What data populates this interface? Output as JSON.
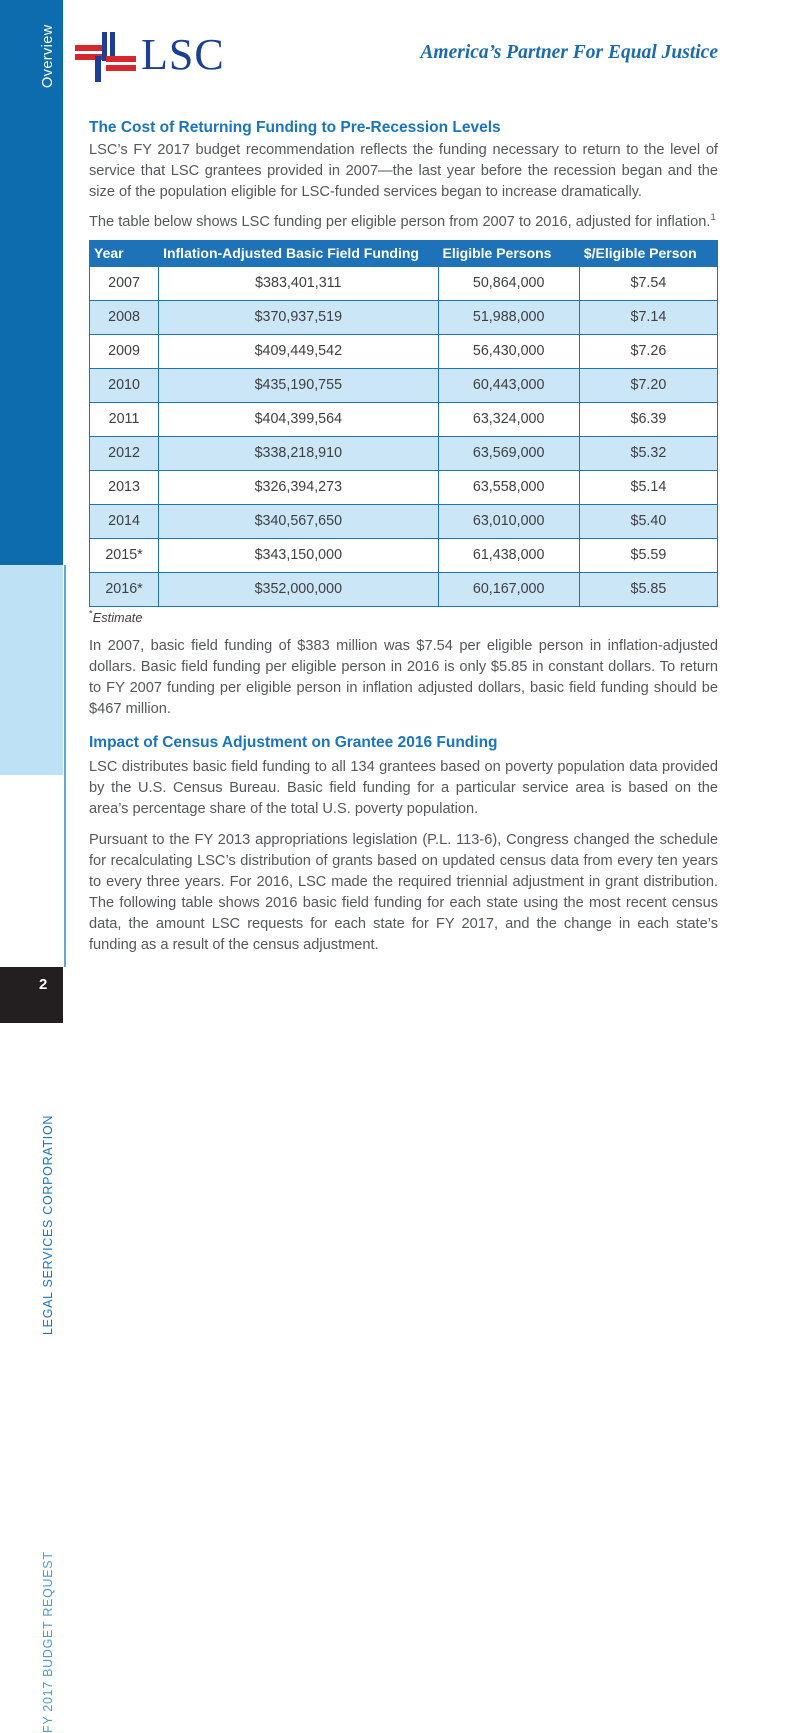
{
  "sidebar": {
    "section_label": "Overview",
    "org_label": "LEGAL SERVICES CORPORATION",
    "doc_label": "FY 2017 BUDGET REQUEST",
    "page_number": "2"
  },
  "header": {
    "logo_text": "LSC",
    "tagline": "America’s Partner For Equal Justice"
  },
  "content": {
    "heading1": "The Cost of Returning Funding to Pre-Recession Levels",
    "para1": "LSC’s FY 2017 budget recommendation reflects the funding necessary to return to the level of service that LSC grantees provided in 2007—the last year before the recession began and the size of the population eligible for LSC-funded services began to increase dramatically.",
    "para2": "The table below shows LSC funding per eligible person from 2007 to 2016, adjusted for inflation.",
    "footnote_ref": "1",
    "table_footnote_marker": "*",
    "table_footnote": "Estimate",
    "para3": "In 2007, basic field funding of $383 million was $7.54 per eligible person in inflation-adjusted dollars. Basic field funding per eligible person in 2016 is only $5.85 in constant dollars. To return to FY 2007 funding per eligible person in inflation adjusted dollars, basic field funding should be $467 million.",
    "heading2": "Impact of Census Adjustment on Grantee 2016 Funding",
    "para4": "LSC distributes basic field funding to all 134 grantees based on poverty population data provided by the U.S. Census Bureau. Basic field funding for a particular service area is based on the area’s percentage share of the total U.S. poverty population.",
    "para5": "Pursuant to the FY 2013 appropriations legislation (P.L. 113-6), Congress changed the schedule for recalculating LSC’s distribution of grants based on updated census data from every ten years to every three years. For 2016, LSC made the required triennial adjustment in grant distribution. The following table shows 2016 basic field funding for each state using the most recent census data, the amount LSC requests for each state for FY 2017, and the change in each state’s funding as a result of the census adjustment."
  },
  "table": {
    "columns": [
      "Year",
      "Inflation-Adjusted Basic Field Funding",
      "Eligible Persons",
      "$/Eligible Person"
    ],
    "rows": [
      [
        "2007",
        "$383,401,311",
        "50,864,000",
        "$7.54"
      ],
      [
        "2008",
        "$370,937,519",
        "51,988,000",
        "$7.14"
      ],
      [
        "2009",
        "$409,449,542",
        "56,430,000",
        "$7.26"
      ],
      [
        "2010",
        "$435,190,755",
        "60,443,000",
        "$7.20"
      ],
      [
        "2011",
        "$404,399,564",
        "63,324,000",
        "$6.39"
      ],
      [
        "2012",
        "$338,218,910",
        "63,569,000",
        "$5.32"
      ],
      [
        "2013",
        "$326,394,273",
        "63,558,000",
        "$5.14"
      ],
      [
        "2014",
        "$340,567,650",
        "63,010,000",
        "$5.40"
      ],
      [
        "2015*",
        "$343,150,000",
        "61,438,000",
        "$5.59"
      ],
      [
        "2016*",
        "$352,000,000",
        "60,167,000",
        "$5.85"
      ]
    ]
  },
  "colors": {
    "sidebar_blue": "#0d6cae",
    "sidebar_light_blue": "#bfe1f6",
    "page_number_box": "#231f20",
    "heading_blue": "#1b75bc",
    "table_header_blue": "#1e72b8",
    "table_stripe_blue": "#cbe6f7",
    "table_border_blue": "#2173b9",
    "logo_navy": "#1c3f94",
    "logo_red": "#d6272e",
    "body_text": "#56575b"
  }
}
